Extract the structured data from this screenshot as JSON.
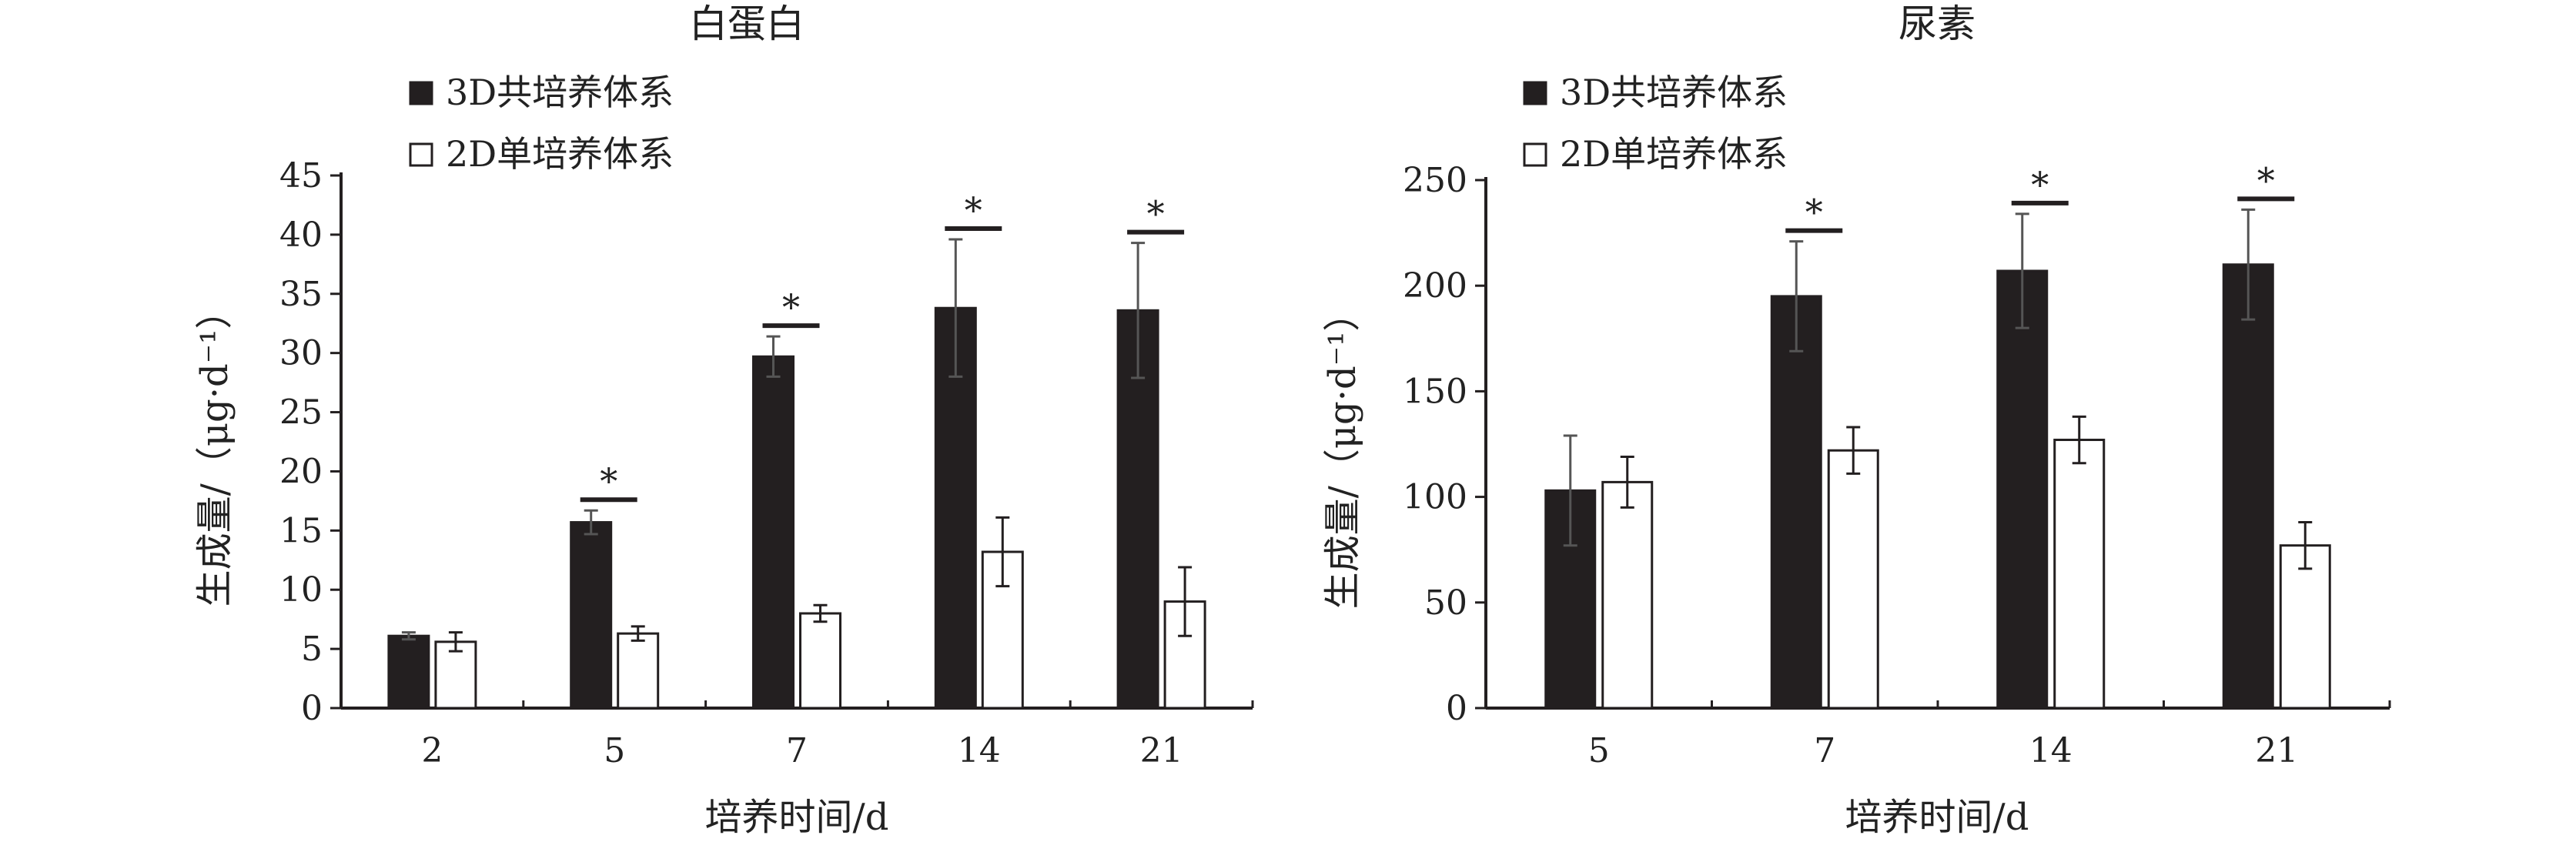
{
  "chart_data": [
    {
      "type": "bar",
      "title": "白蛋白",
      "xlabel": "培养时间/d",
      "ylabel": "生成量/（μg·d⁻¹）",
      "ylim": [
        0,
        45
      ],
      "yticks": [
        0,
        5,
        10,
        15,
        20,
        25,
        30,
        35,
        40,
        45
      ],
      "categories": [
        "2",
        "5",
        "7",
        "14",
        "21"
      ],
      "series": [
        {
          "name": "3D共培养体系",
          "color": "#231f20",
          "values": [
            6.1,
            15.7,
            29.7,
            33.8,
            33.6
          ],
          "error": [
            0.3,
            1.0,
            1.7,
            5.8,
            5.7
          ]
        },
        {
          "name": "2D单培养体系",
          "color": "#ffffff",
          "values": [
            5.6,
            6.3,
            8.0,
            13.2,
            9.0
          ],
          "error": [
            0.8,
            0.6,
            0.7,
            2.9,
            2.9
          ]
        }
      ],
      "significance": [
        false,
        true,
        true,
        true,
        true
      ],
      "significance_symbol": "*",
      "legend_position": "top-left"
    },
    {
      "type": "bar",
      "title": "尿素",
      "xlabel": "培养时间/d",
      "ylabel": "生成量/（μg·d⁻¹）",
      "ylim": [
        0,
        250
      ],
      "yticks": [
        0,
        50,
        100,
        150,
        200,
        250
      ],
      "categories": [
        "5",
        "7",
        "14",
        "21"
      ],
      "series": [
        {
          "name": "3D共培养体系",
          "color": "#231f20",
          "values": [
            103,
            195,
            207,
            210
          ],
          "error": [
            26,
            26,
            27,
            26
          ]
        },
        {
          "name": "2D单培养体系",
          "color": "#ffffff",
          "values": [
            107,
            122,
            127,
            77
          ],
          "error": [
            12,
            11,
            11,
            11
          ]
        }
      ],
      "significance": [
        false,
        true,
        true,
        true
      ],
      "significance_symbol": "*",
      "legend_position": "top-left"
    }
  ]
}
